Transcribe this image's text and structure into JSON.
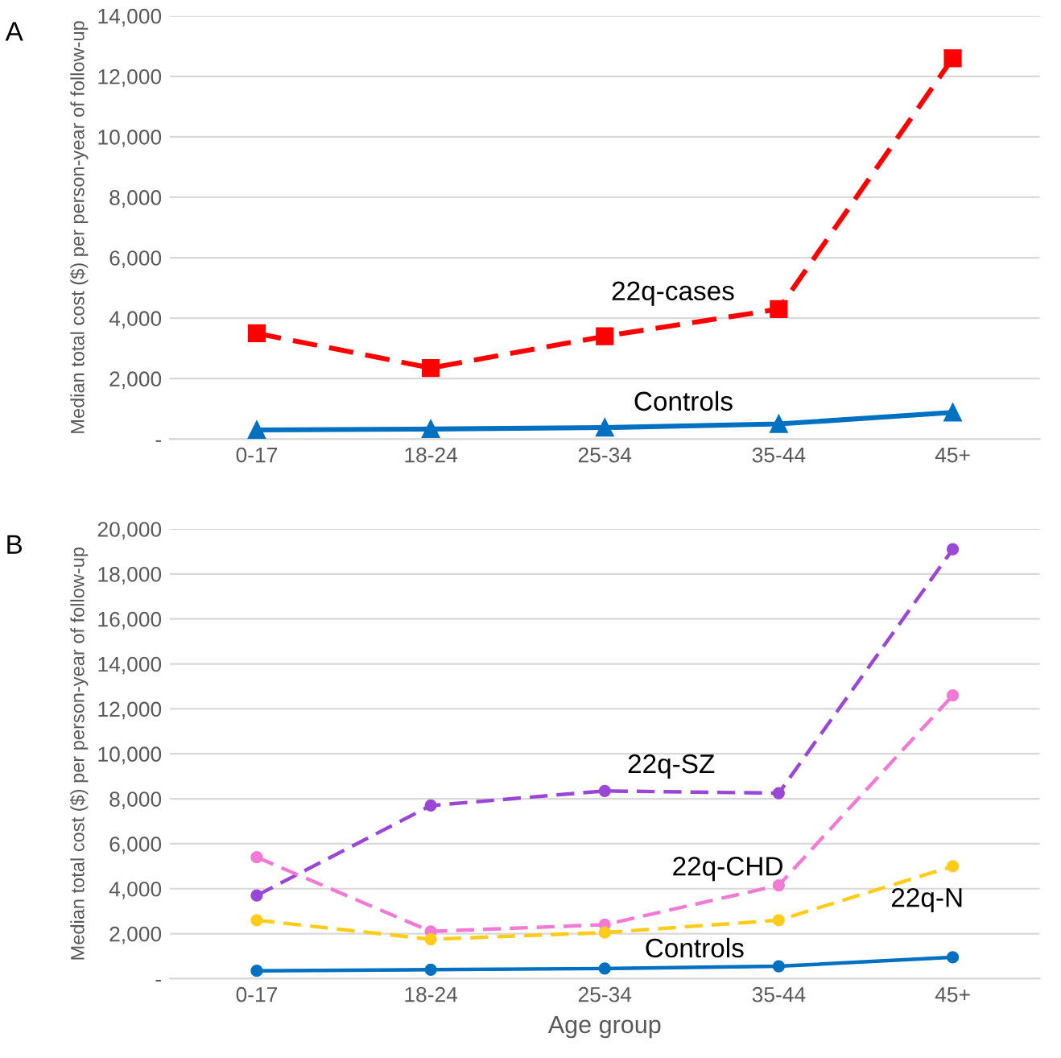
{
  "chart_data": [
    {
      "type": "line",
      "title": "A",
      "ylabel": "Median total cost ($) per person-year of follow-up",
      "categories": [
        "0-17",
        "18-24",
        "25-34",
        "35-44",
        "45+"
      ],
      "ylim": [
        0,
        14000
      ],
      "yticks": [
        {
          "value": 0,
          "label": "-"
        },
        {
          "value": 2000,
          "label": "2,000"
        },
        {
          "value": 4000,
          "label": "4,000"
        },
        {
          "value": 6000,
          "label": "6,000"
        },
        {
          "value": 8000,
          "label": "8,000"
        },
        {
          "value": 10000,
          "label": "10,000"
        },
        {
          "value": 12000,
          "label": "12,000"
        },
        {
          "value": 14000,
          "label": "14,000"
        }
      ],
      "grid": "y",
      "legend": false,
      "series": [
        {
          "name": "22q-cases",
          "color": "#ff0000",
          "marker": "square",
          "line_style": "dashed",
          "values": [
            3500,
            2350,
            3400,
            4300,
            12600
          ]
        },
        {
          "name": "Controls",
          "color": "#0070c0",
          "marker": "triangle",
          "line_style": "solid",
          "values": [
            300,
            330,
            380,
            500,
            880
          ]
        }
      ]
    },
    {
      "type": "line",
      "title": "B",
      "xlabel": "Age group",
      "ylabel": "Median total cost ($) per person-year of follow-up",
      "categories": [
        "0-17",
        "18-24",
        "25-34",
        "35-44",
        "45+"
      ],
      "ylim": [
        0,
        20000
      ],
      "yticks": [
        {
          "value": 0,
          "label": "-"
        },
        {
          "value": 2000,
          "label": "2,000"
        },
        {
          "value": 4000,
          "label": "4,000"
        },
        {
          "value": 6000,
          "label": "6,000"
        },
        {
          "value": 8000,
          "label": "8,000"
        },
        {
          "value": 10000,
          "label": "10,000"
        },
        {
          "value": 12000,
          "label": "12,000"
        },
        {
          "value": 14000,
          "label": "14,000"
        },
        {
          "value": 16000,
          "label": "16,000"
        },
        {
          "value": 18000,
          "label": "18,000"
        },
        {
          "value": 20000,
          "label": "20,000"
        }
      ],
      "grid": "y",
      "legend": false,
      "series": [
        {
          "name": "22q-SZ",
          "color": "#9b47d6",
          "marker": "circle",
          "line_style": "dashed",
          "values": [
            3700,
            7700,
            8350,
            8250,
            19100
          ]
        },
        {
          "name": "22q-CHD",
          "color": "#f07ad6",
          "marker": "circle",
          "line_style": "dashed",
          "values": [
            5400,
            2100,
            2400,
            4150,
            12600
          ]
        },
        {
          "name": "22q-N",
          "color": "#ffcc1a",
          "marker": "circle",
          "line_style": "dashed",
          "values": [
            2600,
            1750,
            2050,
            2600,
            5000
          ]
        },
        {
          "name": "Controls",
          "color": "#0070c0",
          "marker": "circle",
          "line_style": "solid",
          "values": [
            350,
            400,
            450,
            550,
            950
          ]
        }
      ]
    }
  ]
}
